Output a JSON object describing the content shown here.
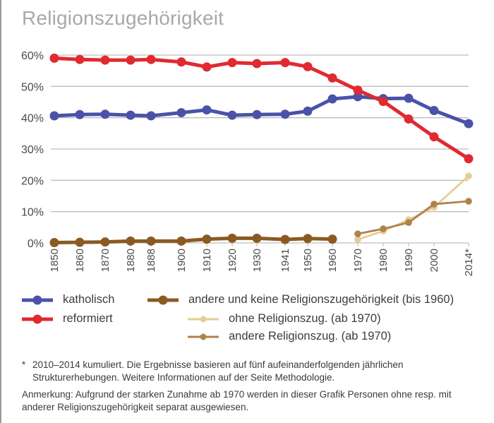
{
  "title": "Religionszugehörigkeit",
  "chart_data": {
    "type": "line",
    "title": "Religionszugehörigkeit",
    "xlabel": "",
    "ylabel": "",
    "x_categories": [
      "1850",
      "1860",
      "1870",
      "1880",
      "1888",
      "1900",
      "1910",
      "1920",
      "1930",
      "1941",
      "1950",
      "1960",
      "1970",
      "1980",
      "1990",
      "2000",
      "2014*"
    ],
    "x_numeric": [
      1850,
      1860,
      1870,
      1880,
      1888,
      1900,
      1910,
      1920,
      1930,
      1941,
      1950,
      1960,
      1970,
      1980,
      1990,
      2000,
      2014
    ],
    "yticks": [
      "0%",
      "10%",
      "20%",
      "30%",
      "40%",
      "50%",
      "60%"
    ],
    "ytick_values": [
      0,
      10,
      20,
      30,
      40,
      50,
      60
    ],
    "ylim": [
      0,
      60
    ],
    "grid": "horizontal",
    "legend_position": "bottom",
    "series": [
      {
        "name": "katholisch",
        "color": "#4a52a8",
        "style": "bold",
        "x": [
          1850,
          1860,
          1870,
          1880,
          1888,
          1900,
          1910,
          1920,
          1930,
          1941,
          1950,
          1960,
          1970,
          1980,
          1990,
          2000,
          2014
        ],
        "values": [
          40.6,
          41.0,
          41.1,
          40.8,
          40.6,
          41.6,
          42.5,
          40.8,
          41.0,
          41.1,
          42.1,
          46.0,
          46.7,
          46.1,
          46.2,
          42.3,
          38.1
        ]
      },
      {
        "name": "reformiert",
        "color": "#e02a30",
        "style": "bold",
        "x": [
          1850,
          1860,
          1870,
          1880,
          1888,
          1900,
          1910,
          1920,
          1930,
          1941,
          1950,
          1960,
          1970,
          1980,
          1990,
          2000,
          2014
        ],
        "values": [
          59.0,
          58.6,
          58.4,
          58.4,
          58.6,
          57.8,
          56.2,
          57.6,
          57.3,
          57.6,
          56.3,
          52.7,
          48.8,
          45.2,
          39.6,
          33.9,
          26.9
        ]
      },
      {
        "name": "andere und keine Religionszugehörigkeit (bis 1960)",
        "color": "#8b5a23",
        "style": "bold",
        "x": [
          1850,
          1860,
          1870,
          1880,
          1888,
          1900,
          1910,
          1920,
          1930,
          1941,
          1950,
          1960
        ],
        "values": [
          0.1,
          0.2,
          0.3,
          0.6,
          0.6,
          0.6,
          1.2,
          1.5,
          1.5,
          1.1,
          1.4,
          1.2
        ]
      },
      {
        "name": "ohne Religionszug. (ab 1970)",
        "color": "#e6cc96",
        "style": "thin",
        "x": [
          1970,
          1980,
          1990,
          2000,
          2014
        ],
        "values": [
          1.1,
          3.8,
          7.4,
          11.4,
          21.4
        ]
      },
      {
        "name": "andere Religionszug. (ab 1970)",
        "color": "#b0814a",
        "style": "thin",
        "x": [
          1970,
          1980,
          1990,
          2000,
          2014
        ],
        "values": [
          2.9,
          4.5,
          6.5,
          12.4,
          13.3
        ]
      }
    ]
  },
  "legend": [
    {
      "label": "katholisch",
      "color": "#4a52a8",
      "style": "bold"
    },
    {
      "label": "reformiert",
      "color": "#e02a30",
      "style": "bold"
    },
    {
      "label": "andere und keine Religionszugehörigkeit (bis 1960)",
      "color": "#8b5a23",
      "style": "bold"
    },
    {
      "label": "ohne Religionszug. (ab 1970)",
      "color": "#e6cc96",
      "style": "thin"
    },
    {
      "label": "andere Religionszug. (ab 1970)",
      "color": "#b0814a",
      "style": "thin"
    }
  ],
  "notes": {
    "star": "*",
    "footnote": "2010–2014 kumuliert. Die Ergebnisse basieren auf fünf aufeinanderfolgenden jährlichen Strukturerhebungen. Weitere Informationen auf der Seite Methodologie.",
    "remark": "Anmerkung: Aufgrund der starken Zunahme ab 1970 werden in dieser Grafik Personen ohne resp. mit anderer Religionszugehörigkeit separat ausgewiesen."
  }
}
